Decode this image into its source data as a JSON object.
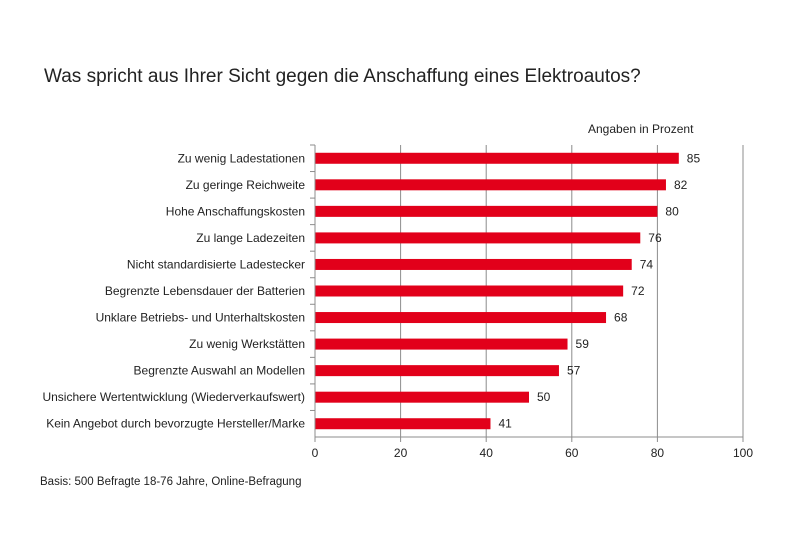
{
  "title": "Was spricht aus Ihrer Sicht gegen die Anschaffung eines Elektroautos?",
  "units_label": "Angaben in Prozent",
  "footnote": "Basis: 500 Befragte 18-76 Jahre, Online-Befragung",
  "bar_color": "#e2001a",
  "chart_data": {
    "type": "bar",
    "orientation": "horizontal",
    "title": "Was spricht aus Ihrer Sicht gegen die Anschaffung eines Elektroautos?",
    "categories": [
      "Zu wenig Ladestationen",
      "Zu geringe Reichweite",
      "Hohe Anschaffungskosten",
      "Zu lange Ladezeiten",
      "Nicht standardisierte Ladestecker",
      "Begrenzte Lebensdauer der Batterien",
      "Unklare Betriebs- und Unterhaltskosten",
      "Zu wenig Werkstätten",
      "Begrenzte Auswahl an Modellen",
      "Unsichere Wertentwicklung (Wiederverkaufswert)",
      "Kein Angebot durch bevorzugte Hersteller/Marke"
    ],
    "values": [
      85,
      82,
      80,
      76,
      74,
      72,
      68,
      59,
      57,
      50,
      41
    ],
    "xlim": [
      0,
      100
    ],
    "xticks": [
      0,
      20,
      40,
      60,
      80,
      100
    ],
    "grid": "vertical",
    "legend": "none"
  }
}
